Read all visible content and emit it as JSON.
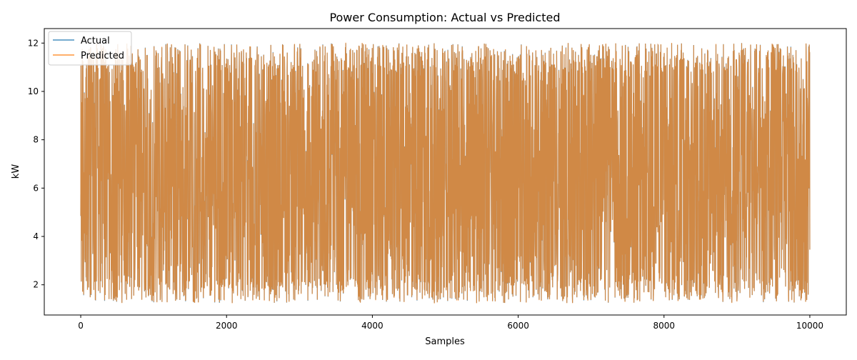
{
  "chart_data": {
    "type": "line",
    "title": "Power Consumption: Actual vs Predicted",
    "xlabel": "Samples",
    "ylabel": "kW",
    "xlim": [
      -500,
      10500
    ],
    "ylim": [
      0.75,
      12.6
    ],
    "x_ticks": [
      0,
      2000,
      4000,
      6000,
      8000,
      10000
    ],
    "y_ticks": [
      2,
      4,
      6,
      8,
      10,
      12
    ],
    "grid": false,
    "legend_position": "upper-left",
    "series": [
      {
        "name": "Actual",
        "color": "#1f77b4",
        "opacity": 0.7,
        "x_range": [
          0,
          10000
        ],
        "y_range_observed": [
          1.1,
          12.1
        ],
        "pattern": "dense high-frequency oscillation filling the band; plotted underneath Predicted"
      },
      {
        "name": "Predicted",
        "color": "#ff7f0e",
        "opacity": 0.7,
        "x_range": [
          0,
          10000
        ],
        "y_range_observed": [
          1.1,
          12.1
        ],
        "pattern": "nearly identical to Actual, drawn on top"
      }
    ],
    "blend_color": "#cd8844"
  }
}
